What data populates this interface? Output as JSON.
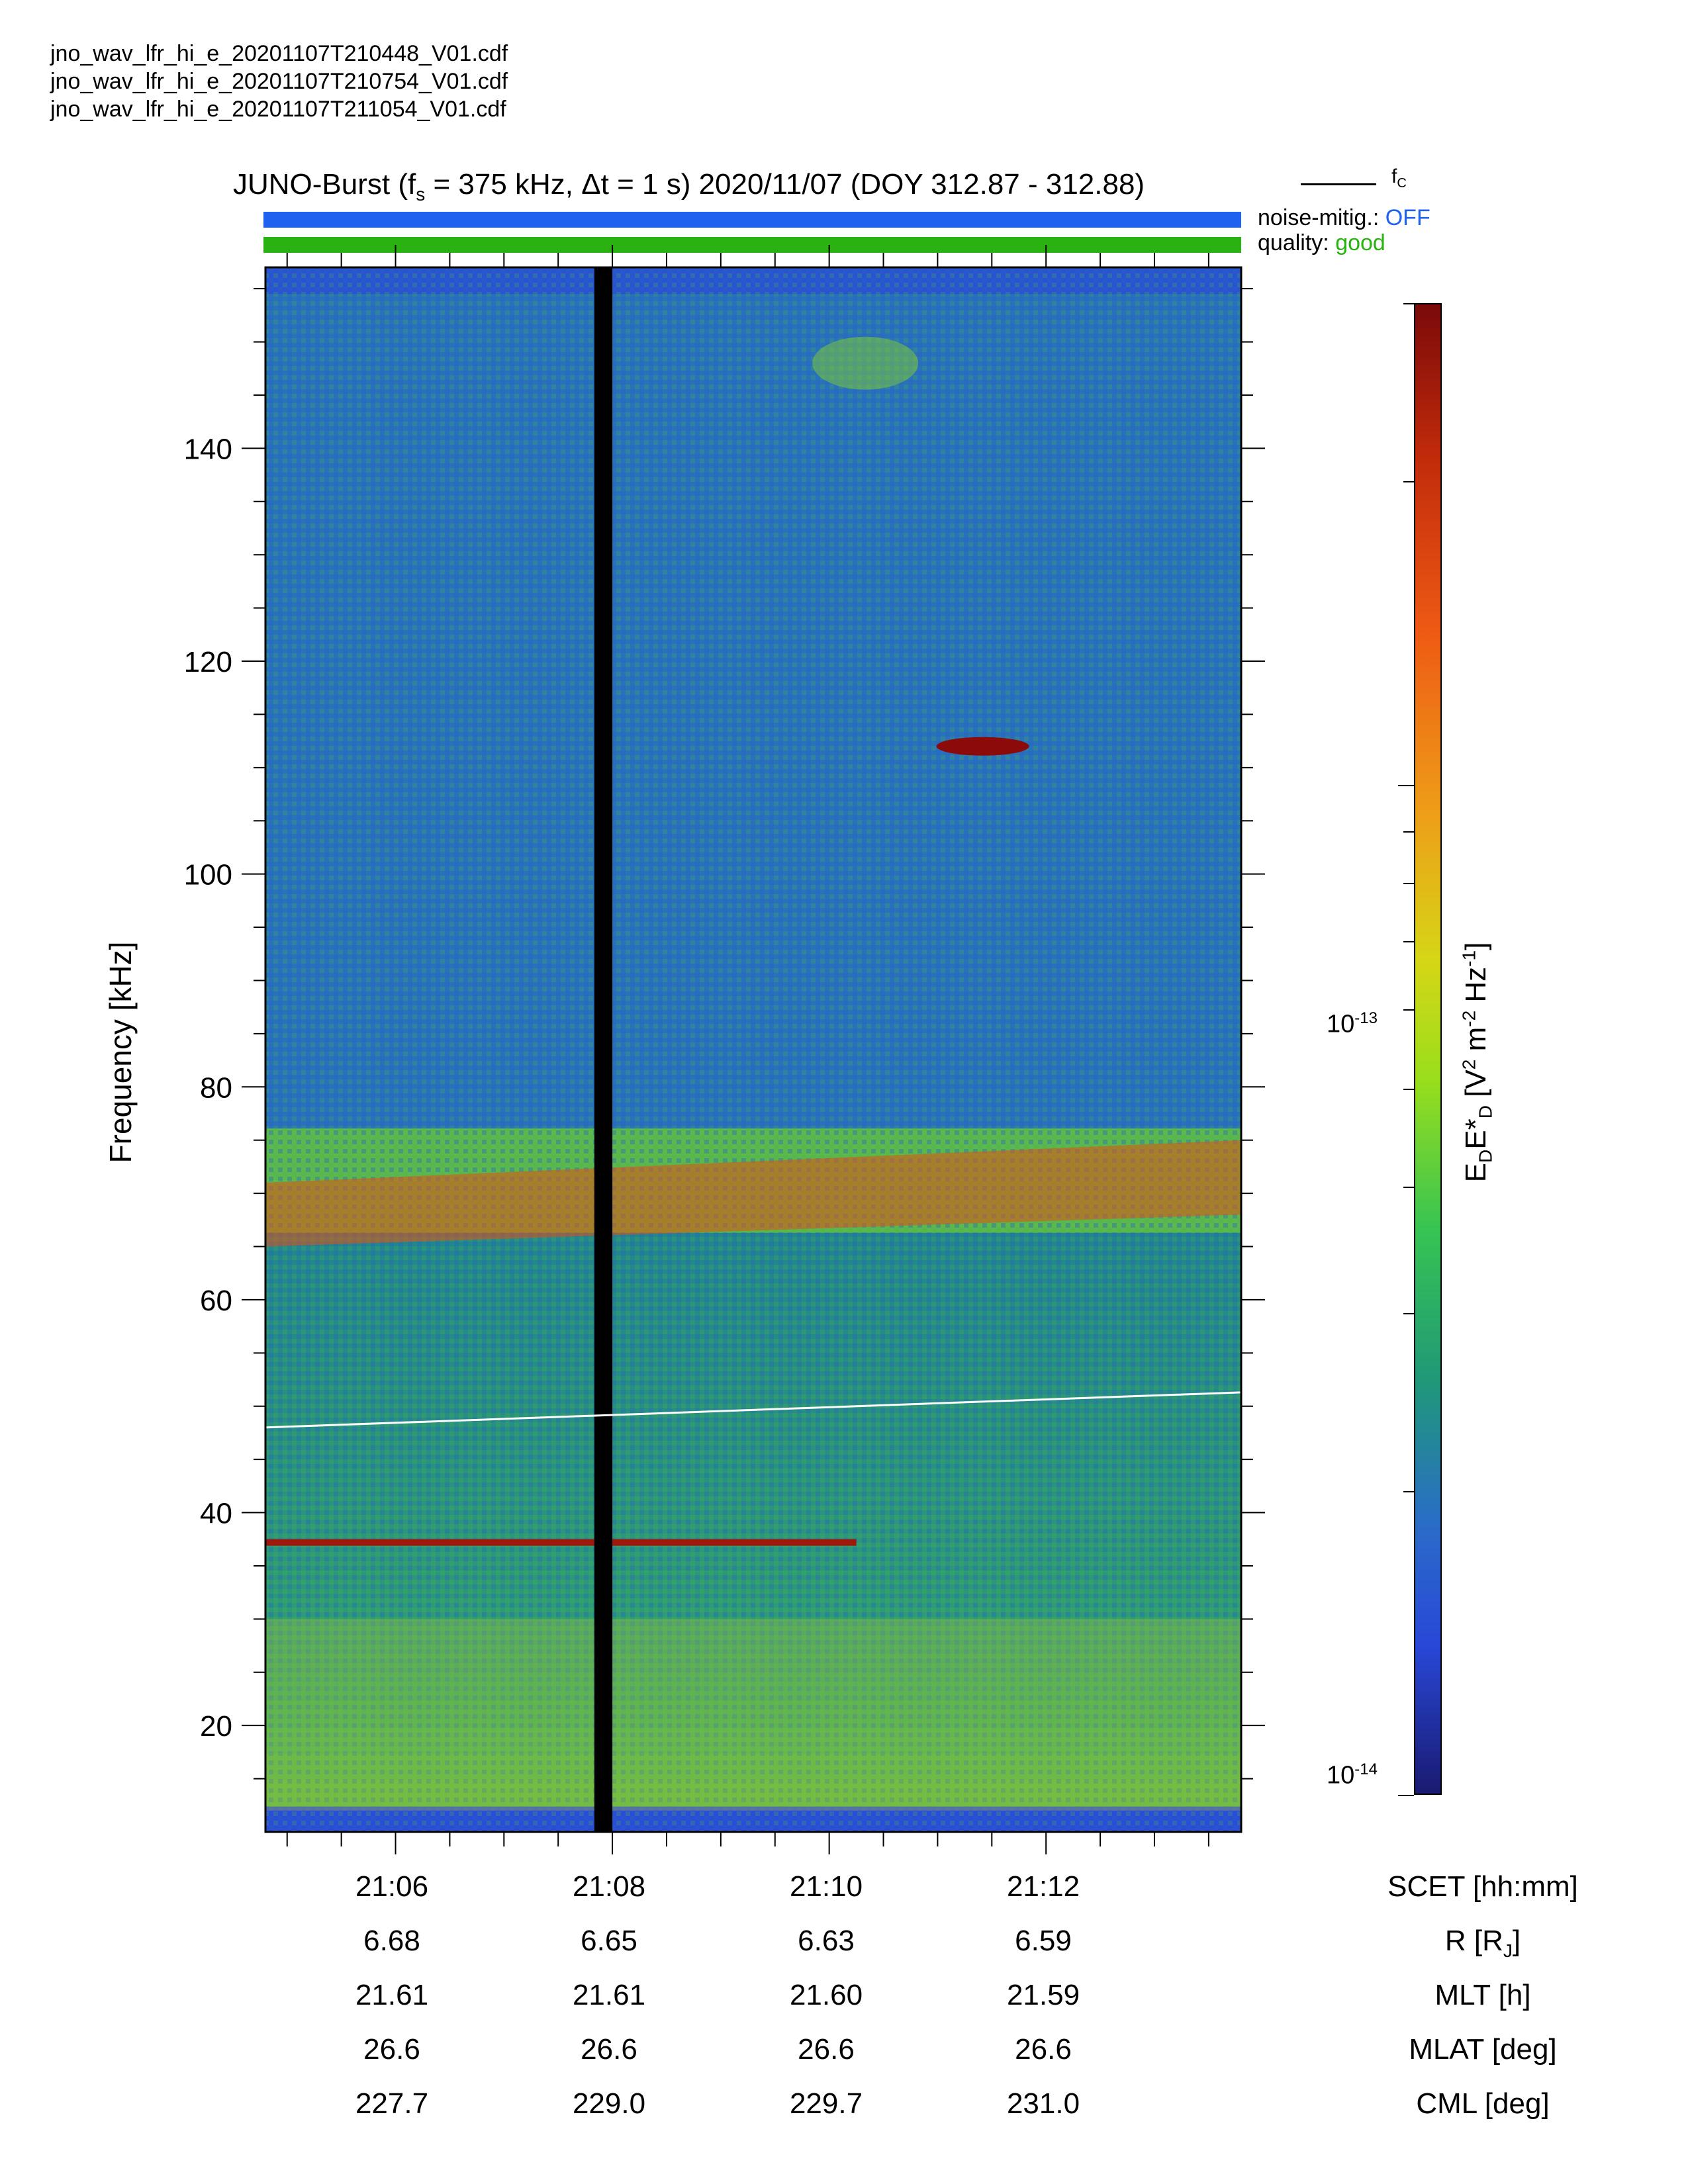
{
  "files": [
    "jno_wav_lfr_hi_e_20201107T210448_V01.cdf",
    "jno_wav_lfr_hi_e_20201107T210754_V01.cdf",
    "jno_wav_lfr_hi_e_20201107T211054_V01.cdf"
  ],
  "title": {
    "prefix": "JUNO-Burst (f",
    "fs_sub": "s",
    "rest": " = 375 kHz, Δt = 1 s)  2020/11/07 (DOY 312.87 - 312.88)"
  },
  "legend": {
    "label": "f",
    "label_sub": "C"
  },
  "status": {
    "noise_label": "noise-mitig.:",
    "noise_value": "OFF",
    "quality_label": "quality:",
    "quality_value": "good"
  },
  "colors": {
    "noise_bar": "#1f62f0",
    "quality_bar": "#2ab112",
    "fc_line": "#ffffff",
    "data_gap": "#000000"
  },
  "chart_data": {
    "type": "heatmap",
    "title": "JUNO-Burst (fs = 375 kHz, Δt = 1 s)  2020/11/07 (DOY 312.87 - 312.88)",
    "xlabel": "SCET [hh:mm]",
    "ylabel": "Frequency [kHz]",
    "xlim": [
      "21:04:48",
      "21:13:48"
    ],
    "ylim": [
      10,
      157
    ],
    "x_ticks": [
      "21:06",
      "21:08",
      "21:10",
      "21:12"
    ],
    "y_ticks": [
      20,
      40,
      60,
      80,
      100,
      120,
      140
    ],
    "colorbar": {
      "label": "EDE*D [V2 m-2 Hz-1]",
      "scale": "log",
      "range": [
        1e-14,
        3e-13
      ],
      "ticks": [
        "10-14",
        "10-13"
      ]
    },
    "fc_line": {
      "start_khz": 48,
      "end_khz": 51.3
    },
    "data_gap": {
      "start": "21:07:50",
      "end": "21:08:00"
    },
    "features": [
      {
        "kind": "background_band",
        "freq_khz": [
          10,
          157
        ],
        "level": 0.38
      },
      {
        "kind": "broad_band",
        "freq_start_khz": 67,
        "freq_end_khz": 72,
        "level": 0.9
      },
      {
        "kind": "narrow_line",
        "freq_khz": 37.2,
        "time_end": "21:10:15",
        "level": 0.98
      },
      {
        "kind": "burst",
        "time": "21:11:25",
        "freq_khz": 112,
        "level": 1.0
      },
      {
        "kind": "patch",
        "time": "21:10:20",
        "freq_khz": 148,
        "level": 0.6
      },
      {
        "kind": "low_freq_enhancement",
        "freq_khz": [
          12,
          30
        ],
        "level": 0.7
      }
    ]
  },
  "ephemeris": {
    "scet": {
      "name": "SCET [hh:mm]",
      "values": [
        "21:06",
        "21:08",
        "21:10",
        "21:12"
      ]
    },
    "r": {
      "name": "R [R",
      "name_sub": "J",
      "name_end": "]",
      "values": [
        "6.68",
        "6.65",
        "6.63",
        "6.59"
      ]
    },
    "mlt": {
      "name": "MLT [h]",
      "values": [
        "21.61",
        "21.61",
        "21.60",
        "21.59"
      ]
    },
    "mlat": {
      "name": "MLAT [deg]",
      "values": [
        "26.6",
        "26.6",
        "26.6",
        "26.6"
      ]
    },
    "cml": {
      "name": "CML [deg]",
      "values": [
        "227.7",
        "229.0",
        "229.7",
        "231.0"
      ]
    }
  },
  "axis_labels": {
    "ylabel": "Frequency [kHz]",
    "colorbar_main": "E",
    "colorbar_sub1": "D",
    "colorbar_mid": "E*",
    "colorbar_sub2": "D",
    "colorbar_units_a": " [V",
    "colorbar_units_b": "2",
    "colorbar_units_c": " m",
    "colorbar_units_d": "-2",
    "colorbar_units_e": " Hz",
    "colorbar_units_f": "-1",
    "colorbar_units_g": "]",
    "cb_tick_base": "10",
    "cb_tick_low_exp": "-14",
    "cb_tick_high_exp": "-13"
  }
}
